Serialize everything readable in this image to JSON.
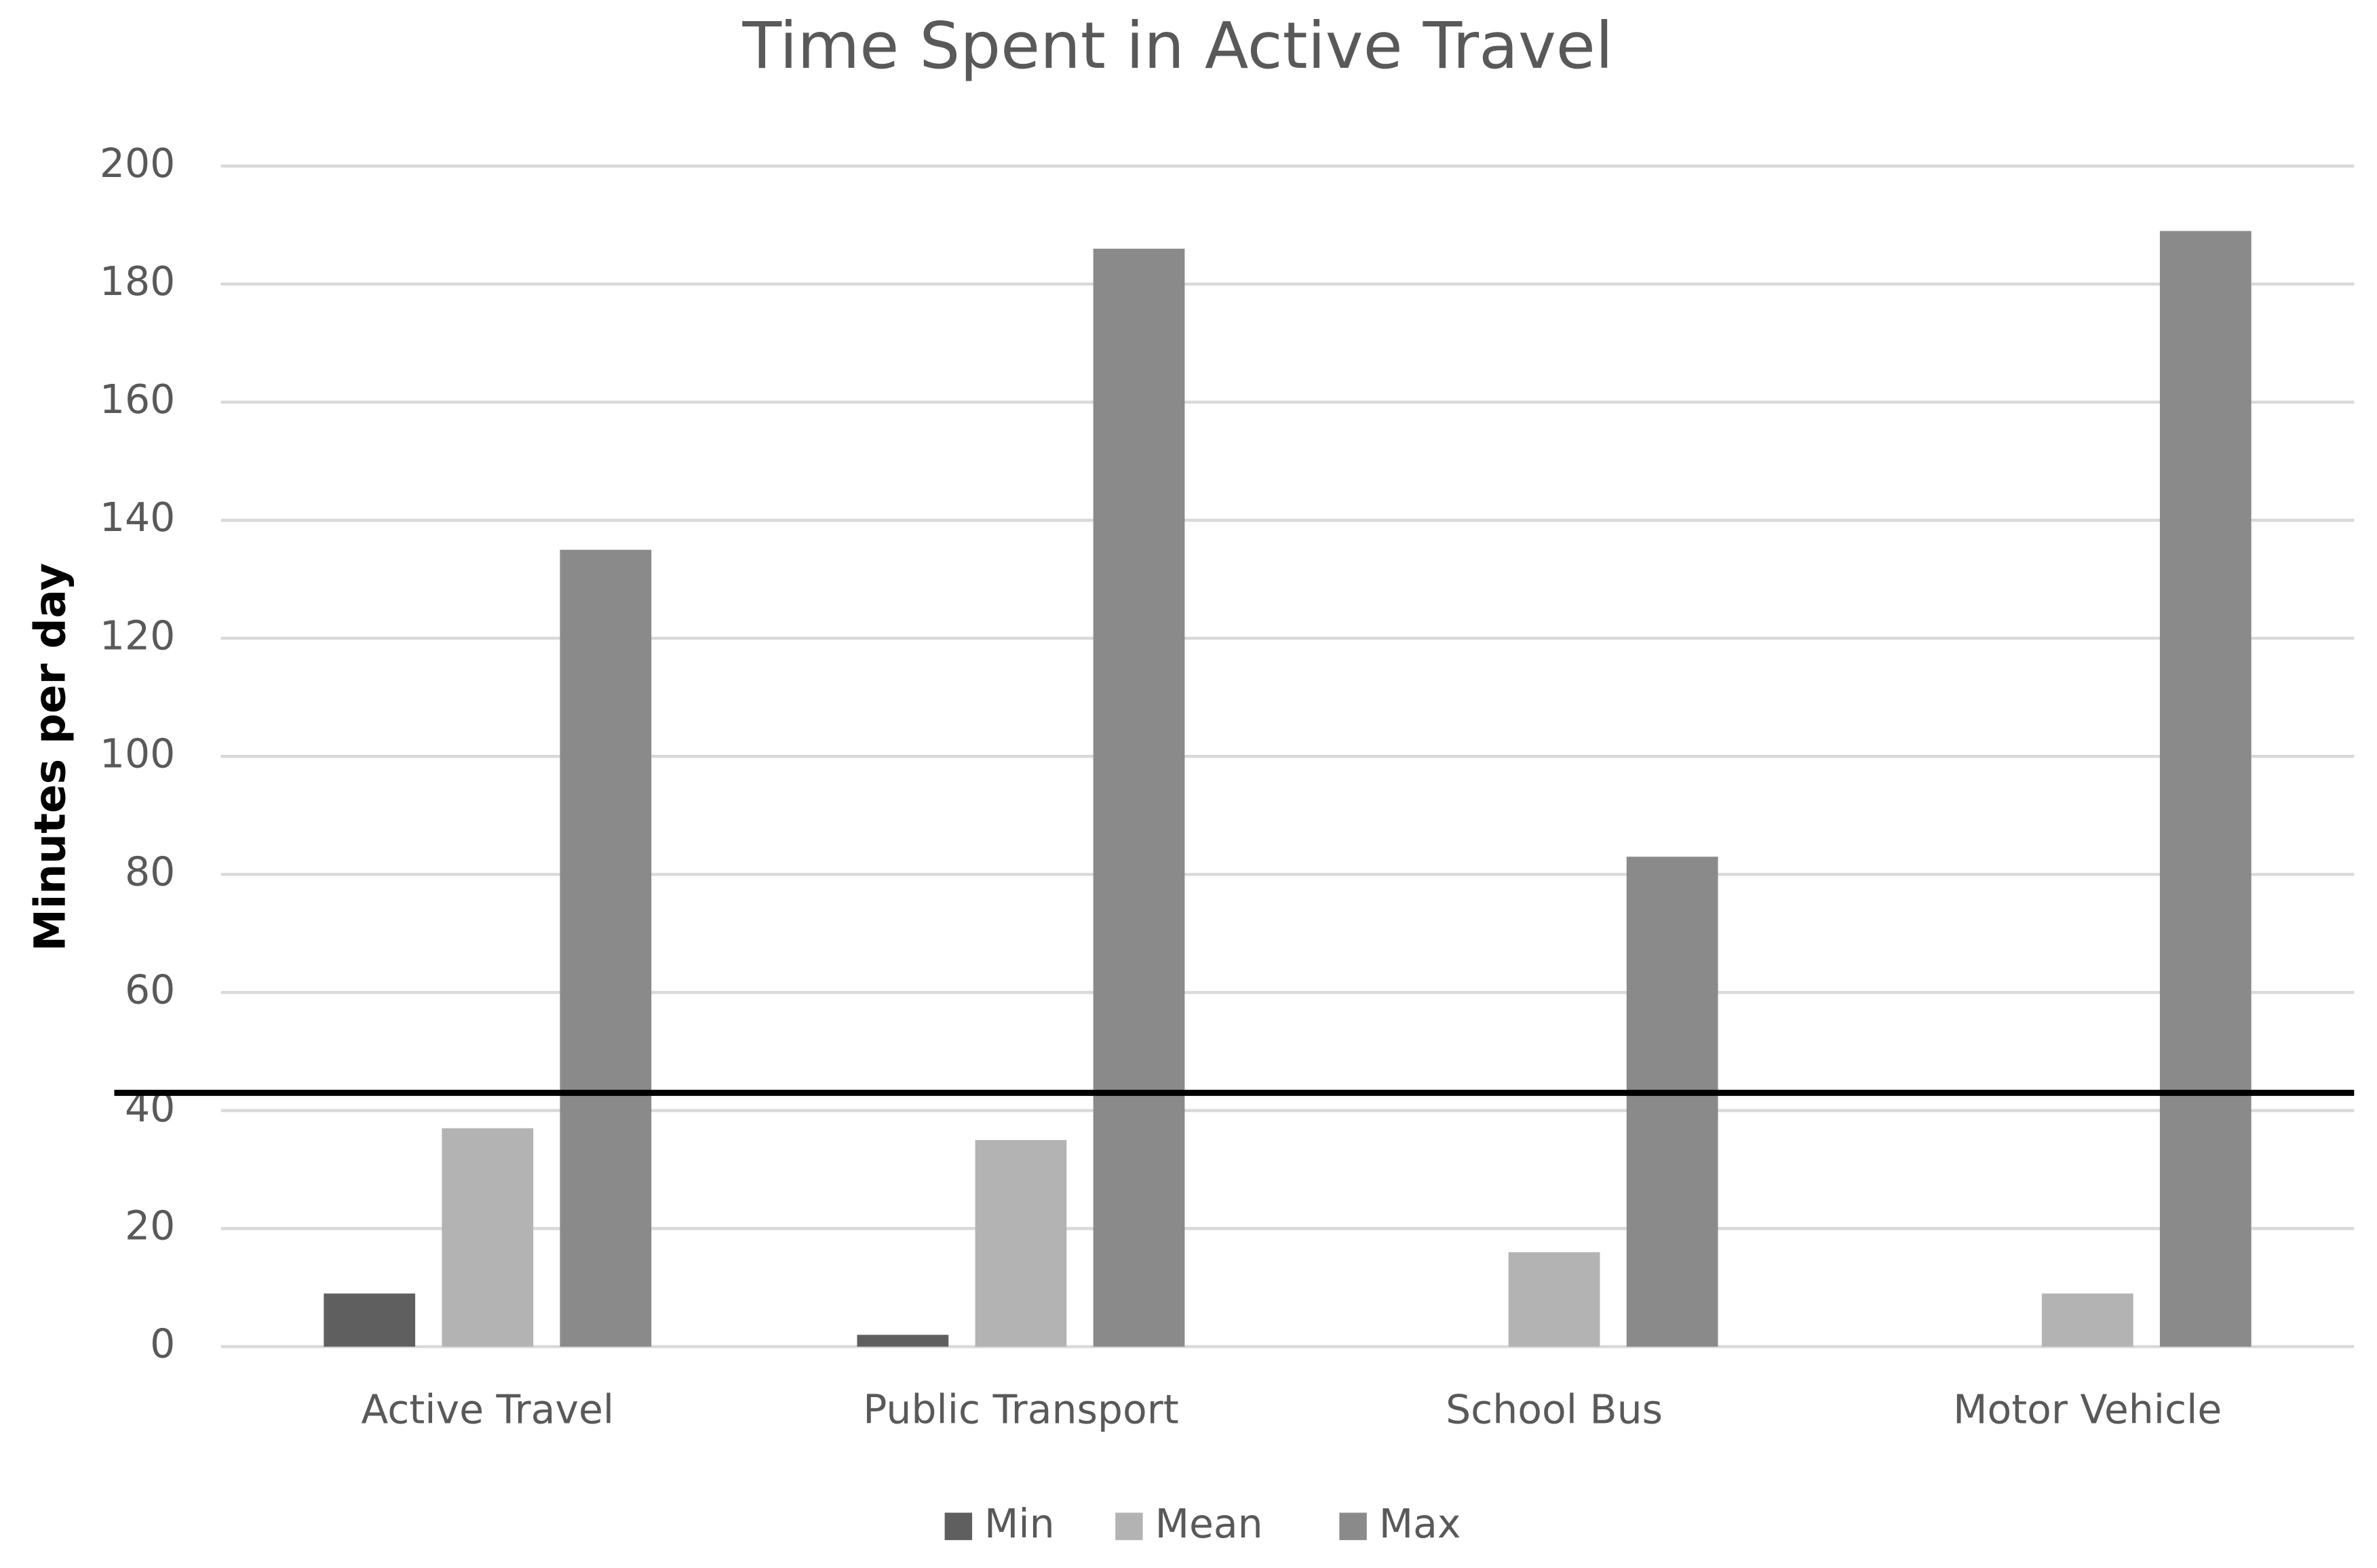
{
  "chart_data": {
    "type": "bar",
    "title": "Time Spent in Active Travel",
    "y_label": "Minutes per day",
    "categories": [
      "Active Travel",
      "Public Transport",
      "School Bus",
      "Motor Vehicle"
    ],
    "series": [
      {
        "name": "Min",
        "color": "#5f5f5f",
        "values": [
          9,
          2,
          0,
          0
        ]
      },
      {
        "name": "Mean",
        "color": "#b3b3b3",
        "values": [
          37,
          35,
          16,
          9
        ]
      },
      {
        "name": "Max",
        "color": "#8a8a8a",
        "values": [
          135,
          186,
          83,
          189
        ]
      }
    ],
    "reference_line": 43,
    "ylim": [
      0,
      200
    ],
    "yticks": [
      0,
      20,
      40,
      60,
      80,
      100,
      120,
      140,
      160,
      180,
      200
    ],
    "grid": true,
    "legend": "bottom"
  }
}
